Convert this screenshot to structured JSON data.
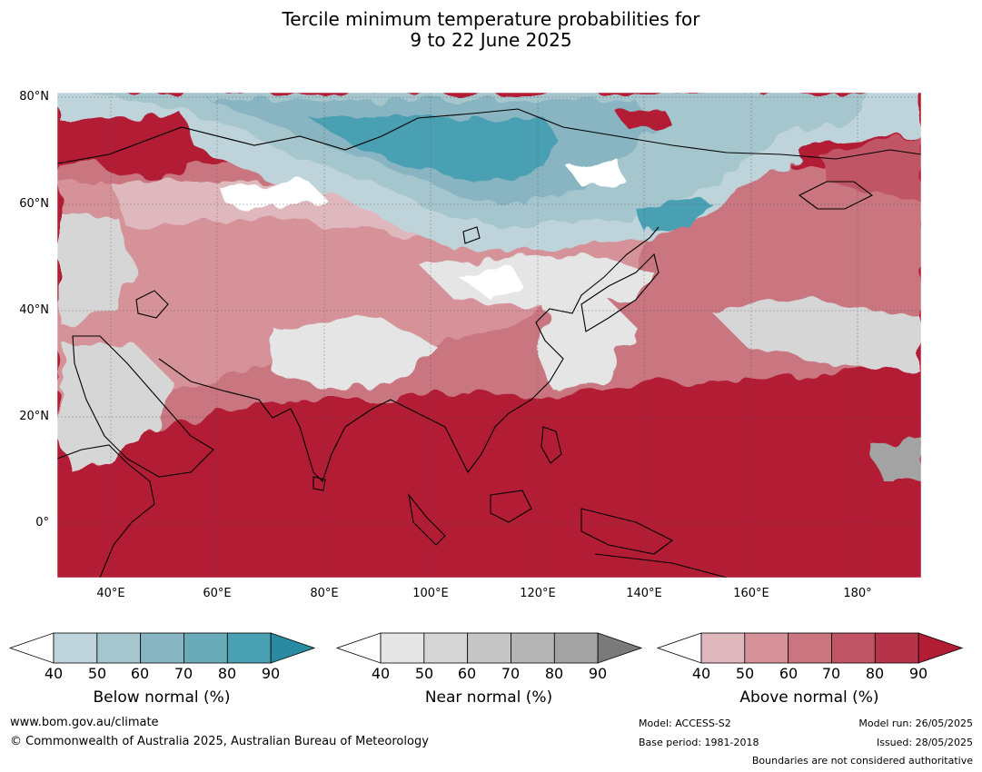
{
  "title": {
    "line1": "Tercile minimum temperature probabilities for",
    "line2": "9 to 22 June 2025"
  },
  "map": {
    "lat_labels": [
      "80°N",
      "60°N",
      "40°N",
      "20°N",
      "0°"
    ],
    "lon_labels": [
      "40°E",
      "60°E",
      "80°E",
      "100°E",
      "120°E",
      "140°E",
      "160°E",
      "180°"
    ],
    "colors": {
      "above_dominant": "#b21c35",
      "below_dominant": "#2f93a8",
      "near_dominant": "#a3a3a3",
      "land_outline": "#000000",
      "borders": "#808080"
    }
  },
  "colorbars": [
    {
      "id": "below",
      "label": "Below normal (%)",
      "ticks": [
        "40",
        "50",
        "60",
        "70",
        "80",
        "90"
      ],
      "colors": [
        "#ffffff",
        "#bfd4da",
        "#a5c6cd",
        "#88b5c1",
        "#6aabb9",
        "#4aa0b3",
        "#2a8aa2"
      ]
    },
    {
      "id": "near",
      "label": "Near normal (%)",
      "ticks": [
        "40",
        "50",
        "60",
        "70",
        "80",
        "90"
      ],
      "colors": [
        "#ffffff",
        "#e5e5e5",
        "#d6d6d6",
        "#c6c6c6",
        "#b5b5b5",
        "#a3a3a3",
        "#7a7a7a"
      ]
    },
    {
      "id": "above",
      "label": "Above normal (%)",
      "ticks": [
        "40",
        "50",
        "60",
        "70",
        "80",
        "90"
      ],
      "colors": [
        "#ffffff",
        "#dfb8bd",
        "#d59399",
        "#c97680",
        "#c05565",
        "#b63449",
        "#b21c35"
      ]
    }
  ],
  "footer": {
    "website": "www.bom.gov.au/climate",
    "copyright": "© Commonwealth of Australia 2025, Australian Bureau of Meteorology",
    "model": "Model: ACCESS-S2",
    "base_period": "Base period: 1981-2018",
    "model_run": "Model run: 26/05/2025",
    "issued": "Issued: 28/05/2025",
    "boundaries": "Boundaries are not considered authoritative"
  }
}
